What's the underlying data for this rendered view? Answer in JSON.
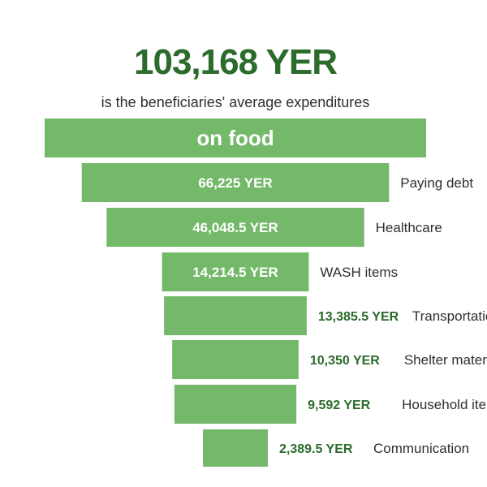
{
  "header": {
    "headline": "103,168 YER",
    "subline": "is the beneficiaries' average expenditures"
  },
  "colors": {
    "bar": "#74b86a",
    "accent": "#2b6b2b",
    "text": "#2f2f2f"
  },
  "chart_data": {
    "type": "bar",
    "orientation": "horizontal-funnel",
    "unit": "YER",
    "title": "103,168 YER",
    "subtitle": "is the beneficiaries' average expenditures",
    "bars": [
      {
        "category": "on food",
        "value": 103168,
        "value_label": ""
      },
      {
        "category": "Paying debt",
        "value": 66225,
        "value_label": "66,225 YER"
      },
      {
        "category": "Healthcare",
        "value": 46048.5,
        "value_label": "46,048.5 YER"
      },
      {
        "category": "WASH items",
        "value": 14214.5,
        "value_label": "14,214.5 YER"
      },
      {
        "category": "Transportation",
        "value": 13385.5,
        "value_label": "13,385.5 YER"
      },
      {
        "category": "Shelter materials",
        "value": 10350,
        "value_label": "10,350 YER"
      },
      {
        "category": "Household items",
        "value": 9592,
        "value_label": "9,592 YER"
      },
      {
        "category": "Communication",
        "value": 2389.5,
        "value_label": "2,389.5 YER"
      }
    ]
  }
}
